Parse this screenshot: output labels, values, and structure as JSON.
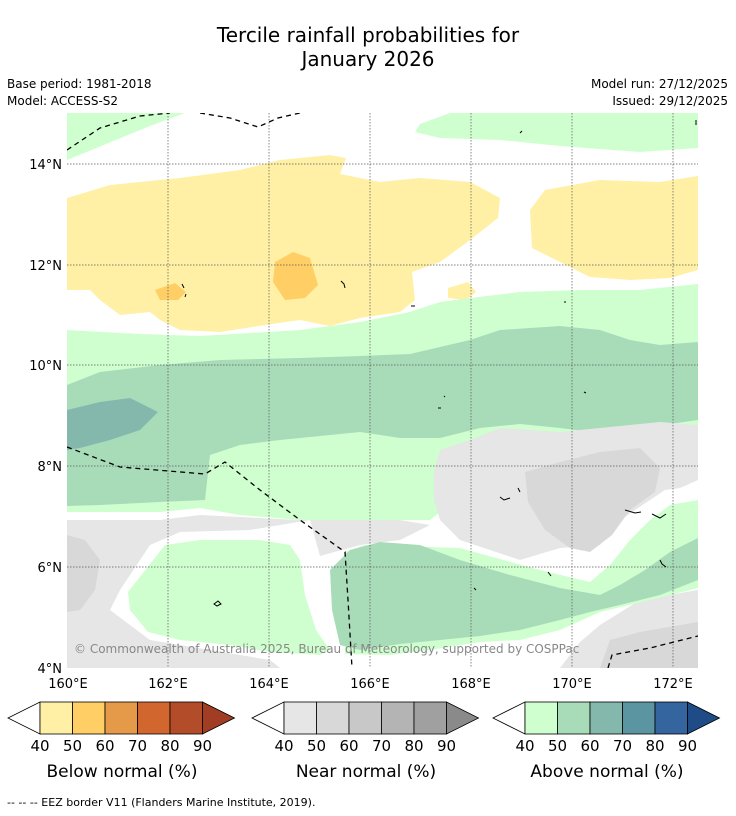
{
  "title": {
    "line1": "Tercile rainfall probabilities for",
    "line2": "January 2026"
  },
  "meta": {
    "base_period": "Base period: 1981-2018",
    "model": "Model: ACCESS-S2",
    "model_run": "Model run: 27/12/2025",
    "issued": "Issued: 29/12/2025"
  },
  "map": {
    "lat_labels": [
      "14°N",
      "12°N",
      "10°N",
      "8°N",
      "6°N",
      "4°N"
    ],
    "lon_labels": [
      "160°E",
      "162°E",
      "164°E",
      "166°E",
      "168°E",
      "170°E",
      "172°E"
    ],
    "copyright": "© Commonwealth of Australia 2025, Bureau of Meteorology, supported by COSPPac"
  },
  "colorbars": [
    {
      "label": "Below normal (%)",
      "colors": [
        "#fff0a6",
        "#ffcf66",
        "#e49a48",
        "#d1662f",
        "#b34d29",
        "#a03d22"
      ],
      "ticks": [
        "40",
        "50",
        "60",
        "70",
        "80",
        "90"
      ]
    },
    {
      "label": "Near normal (%)",
      "colors": [
        "#e6e6e6",
        "#d8d8d8",
        "#c8c8c8",
        "#b4b4b4",
        "#a0a0a0",
        "#8a8a8a"
      ],
      "ticks": [
        "40",
        "50",
        "60",
        "70",
        "80",
        "90"
      ]
    },
    {
      "label": "Above normal (%)",
      "colors": [
        "#cfffcf",
        "#a8dcb9",
        "#84b8ac",
        "#5b95a2",
        "#34659f",
        "#1f4c86"
      ],
      "ticks": [
        "40",
        "50",
        "60",
        "70",
        "80",
        "90"
      ]
    }
  ],
  "footnote": "--  --  -- EEZ border V11 (Flanders Marine Institute, 2019)."
}
